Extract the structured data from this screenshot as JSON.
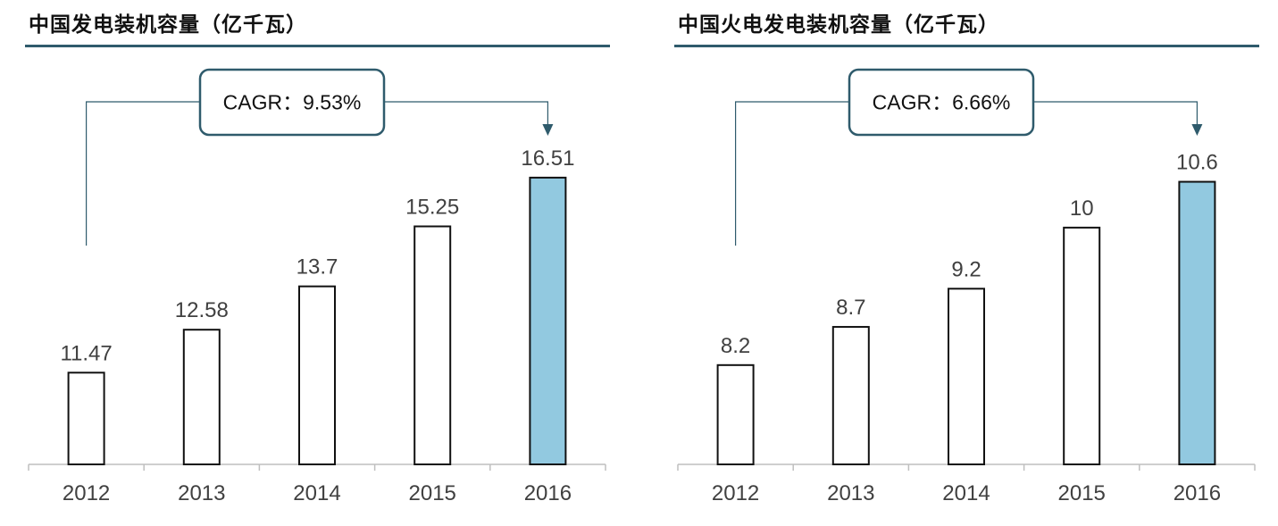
{
  "colors": {
    "accent_rule": "#2f5b6c",
    "highlight_bar": "#92c9e0",
    "normal_bar": "#ffffff",
    "bar_stroke": "#111111",
    "connector": "#2f5b6c",
    "text": "#404040"
  },
  "chart_data": [
    {
      "type": "bar",
      "title": "中国发电装机容量（亿千瓦）",
      "categories": [
        "2012",
        "2013",
        "2014",
        "2015",
        "2016"
      ],
      "values": [
        11.47,
        12.58,
        13.7,
        15.25,
        16.51
      ],
      "value_labels": [
        "11.47",
        "12.58",
        "13.7",
        "15.25",
        "16.51"
      ],
      "highlight_index": 4,
      "annotation": "CAGR：9.53%",
      "ylim": [
        9.1,
        16.6
      ],
      "grid": false,
      "legend": "none"
    },
    {
      "type": "bar",
      "title": "中国火电发电装机容量（亿千瓦）",
      "categories": [
        "2012",
        "2013",
        "2014",
        "2015",
        "2016"
      ],
      "values": [
        8.2,
        8.7,
        9.2,
        10,
        10.6
      ],
      "value_labels": [
        "8.2",
        "8.7",
        "9.2",
        "10",
        "10.6"
      ],
      "highlight_index": 4,
      "annotation": "CAGR：6.66%",
      "ylim": [
        6.9,
        10.7
      ],
      "grid": false,
      "legend": "none"
    }
  ]
}
